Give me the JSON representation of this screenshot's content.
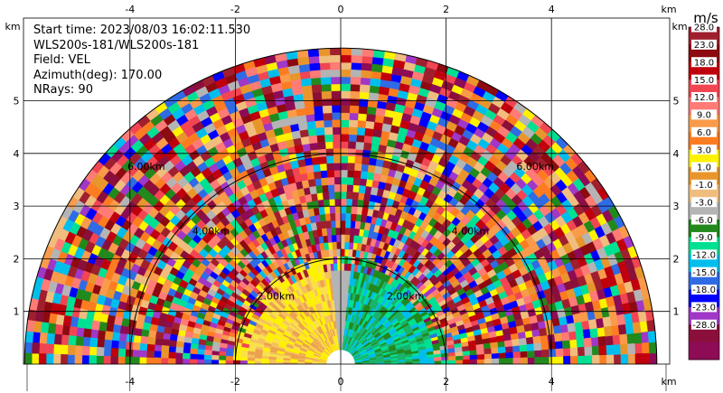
{
  "chart_data": {
    "type": "heatmap",
    "subtype": "radar-ppi-half-disc",
    "info": {
      "start_time": "Start time: 2023/08/03 16:02:11.530",
      "instrument": "WLS200s-181/WLS200s-181",
      "field": "Field: VEL",
      "azimuth": "Azimuth(deg): 170.00",
      "nrays": "NRays: 90"
    },
    "x_unit": "km",
    "y_unit": "km",
    "x_ticks": [
      -4,
      -2,
      0,
      2,
      4
    ],
    "y_ticks": [
      1,
      2,
      3,
      4,
      5
    ],
    "xlim": [
      -6.0,
      6.0
    ],
    "ylim": [
      0,
      6.0
    ],
    "max_range_km": 6.0,
    "range_rings": [
      "2.00km",
      "4.00km",
      "6.00km"
    ],
    "colorbar": {
      "unit": "m/s",
      "levels": [
        "28.0",
        "23.0",
        "18.0",
        "15.0",
        "12.0",
        "9.0",
        "6.0",
        "3.0",
        "1.0",
        "-1.0",
        "-3.0",
        "-6.0",
        "-9.0",
        "-12.0",
        "-15.0",
        "-18.0",
        "-23.0",
        "-28.0"
      ],
      "colors": [
        "#a01f2e",
        "#8c0a10",
        "#c0000c",
        "#f24552",
        "#ff7b76",
        "#f99b4a",
        "#fd7c21",
        "#fff200",
        "#e8962c",
        "#f0bd7e",
        "#b4b4b4",
        "#22891d",
        "#00e093",
        "#00beec",
        "#2f6be4",
        "#0000ff",
        "#a037c7",
        "#8a0f3a",
        "#8e0b56"
      ]
    },
    "near_field": {
      "left_colors": [
        "#fff200",
        "#fae04a",
        "#f6c05d",
        "#eca24f"
      ],
      "center_color": "#b4b4b4",
      "right_colors": [
        "#22891d",
        "#00e093",
        "#00beec",
        "#19b36b"
      ]
    }
  }
}
